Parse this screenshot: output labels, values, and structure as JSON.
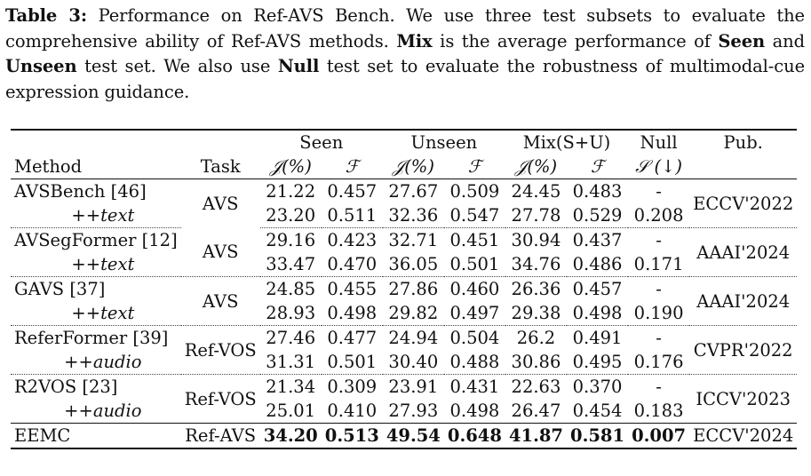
{
  "caption": {
    "label": "Table 3:",
    "part1": " Performance on Ref-AVS Bench. We use three test subsets to evaluate the comprehensive ability of Ref-AVS methods. ",
    "mix": "Mix",
    "part2": " is the average performance of ",
    "seen": "Seen",
    "part3": " and ",
    "unseen": "Unseen",
    "part4": " test set. We also use ",
    "null": "Null",
    "part5": " test set to evaluate the robustness of multimodal-cue expression guidance."
  },
  "header": {
    "groups": [
      "Seen",
      "Unseen",
      "Mix(S+U)",
      "Null",
      "Pub."
    ],
    "method": "Method",
    "task": "Task",
    "sub": [
      "𝒥(%)",
      "ℱ",
      "𝒥(%)",
      "ℱ",
      "𝒥(%)",
      "ℱ",
      "𝒮 (↓)"
    ]
  },
  "rows": [
    {
      "method": "AVSBench [46]",
      "sub": "+text",
      "task": "AVS",
      "pub": "ECCV'2022",
      "base": [
        "21.22",
        "0.457",
        "27.67",
        "0.509",
        "24.45",
        "0.483",
        "-"
      ],
      "plus": [
        "23.20",
        "0.511",
        "32.36",
        "0.547",
        "27.78",
        "0.529",
        "0.208"
      ]
    },
    {
      "method": "AVSegFormer [12]",
      "sub": "+text",
      "task": "AVS",
      "pub": "AAAI'2024",
      "base": [
        "29.16",
        "0.423",
        "32.71",
        "0.451",
        "30.94",
        "0.437",
        "-"
      ],
      "plus": [
        "33.47",
        "0.470",
        "36.05",
        "0.501",
        "34.76",
        "0.486",
        "0.171"
      ]
    },
    {
      "method": "GAVS [37]",
      "sub": "+text",
      "task": "AVS",
      "pub": "AAAI'2024",
      "base": [
        "24.85",
        "0.455",
        "27.86",
        "0.460",
        "26.36",
        "0.457",
        "-"
      ],
      "plus": [
        "28.93",
        "0.498",
        "29.82",
        "0.497",
        "29.38",
        "0.498",
        "0.190"
      ]
    },
    {
      "method": "ReferFormer [39]",
      "sub": "+audio",
      "task": "Ref-VOS",
      "pub": "CVPR'2022",
      "base": [
        "27.46",
        "0.477",
        "24.94",
        "0.504",
        "26.2",
        "0.491",
        "-"
      ],
      "plus": [
        "31.31",
        "0.501",
        "30.40",
        "0.488",
        "30.86",
        "0.495",
        "0.176"
      ]
    },
    {
      "method": "R2VOS [23]",
      "sub": "+audio",
      "task": "Ref-VOS",
      "pub": "ICCV'2023",
      "base": [
        "21.34",
        "0.309",
        "23.91",
        "0.431",
        "22.63",
        "0.370",
        "-"
      ],
      "plus": [
        "25.01",
        "0.410",
        "27.93",
        "0.498",
        "26.47",
        "0.454",
        "0.183"
      ]
    }
  ],
  "final": {
    "method": "EEMC",
    "task": "Ref-AVS",
    "pub": "ECCV'2024",
    "values": [
      "34.20",
      "0.513",
      "49.54",
      "0.648",
      "41.87",
      "0.581",
      "0.007"
    ]
  }
}
